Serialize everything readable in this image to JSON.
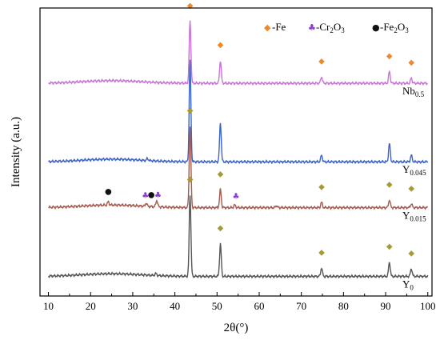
{
  "chart_data": {
    "type": "line",
    "xlabel": "2θ(°)",
    "xlabel_theta": "θ",
    "ylabel": "Intensity (a.u.)",
    "xlim": [
      8,
      101
    ],
    "ylim": [
      0,
      4.4
    ],
    "x_ticks": [
      10,
      20,
      30,
      40,
      50,
      60,
      70,
      80,
      90,
      100
    ],
    "y_ticks_labeled": false,
    "grid": false,
    "legend_position": "top-right",
    "legend": [
      {
        "marker": "◆",
        "color": "#ee8a2c",
        "text": "-Fe",
        "base": "-Fe",
        "sub": "",
        "post": ""
      },
      {
        "marker": "♣",
        "color": "#8b3bd1",
        "text": "-Cr2O3",
        "base": "-Cr",
        "sub": "2",
        "post": "O",
        "sub2": "3"
      },
      {
        "marker": "●",
        "color": "#111111",
        "text": "-Fe2O3",
        "base": "-Fe",
        "sub": "2",
        "post": "O",
        "sub2": "3"
      }
    ],
    "series": [
      {
        "name": "Y0",
        "label_base": "Y",
        "label_sub": "0",
        "color": "#555555",
        "baseline": 0.3,
        "peaks": [
          [
            43.6,
            1.25
          ],
          [
            50.8,
            0.5
          ],
          [
            74.8,
            0.13
          ],
          [
            90.9,
            0.22
          ],
          [
            96.1,
            0.12
          ],
          [
            35.5,
            0.03
          ]
        ],
        "markers": [
          {
            "symbol": "◆",
            "color": "#a69a32",
            "x": [
              43.6,
              50.8,
              74.8,
              90.9,
              96.1
            ],
            "dy": 0.2
          }
        ]
      },
      {
        "name": "Y0.015",
        "label_base": "Y",
        "label_sub": "0.015",
        "color": "#a55a4d",
        "baseline": 1.35,
        "peaks": [
          [
            43.6,
            1.25
          ],
          [
            50.8,
            0.28
          ],
          [
            74.8,
            0.08
          ],
          [
            90.9,
            0.12
          ],
          [
            96.1,
            0.06
          ],
          [
            24.2,
            0.05
          ],
          [
            33.2,
            0.05
          ],
          [
            35.7,
            0.1
          ],
          [
            54.2,
            0.04
          ],
          [
            64.1,
            0.03
          ]
        ],
        "markers": [
          {
            "symbol": "◆",
            "color": "#a69a32",
            "x": [
              43.6,
              50.8,
              74.8,
              90.9,
              96.1
            ],
            "dy": 0.2
          },
          {
            "symbol": "●",
            "color": "#111111",
            "x": [
              24.2,
              34.4
            ],
            "dy": 0.16
          },
          {
            "symbol": "♣",
            "color": "#8b3bd1",
            "x": [
              33.0,
              36.0,
              54.5
            ],
            "dy": 0.12
          }
        ]
      },
      {
        "name": "Y0.045",
        "label_base": "Y",
        "label_sub": "0.045",
        "color": "#3c63c9",
        "baseline": 2.05,
        "peaks": [
          [
            43.6,
            1.55
          ],
          [
            50.8,
            0.6
          ],
          [
            74.8,
            0.1
          ],
          [
            90.9,
            0.28
          ],
          [
            96.1,
            0.1
          ],
          [
            33.5,
            0.03
          ]
        ],
        "markers": []
      },
      {
        "name": "Nb0.5",
        "label_base": "Nb",
        "label_sub": "0.5",
        "color": "#c774d6",
        "baseline": 3.25,
        "peaks": [
          [
            43.6,
            0.95
          ],
          [
            50.8,
            0.35
          ],
          [
            74.8,
            0.1
          ],
          [
            90.9,
            0.18
          ],
          [
            96.1,
            0.08
          ]
        ],
        "markers": [
          {
            "symbol": "◆",
            "color": "#ee8a2c",
            "x": [
              43.6,
              50.8,
              74.8,
              90.9,
              96.1
            ],
            "dy": 0.2
          }
        ]
      }
    ]
  }
}
